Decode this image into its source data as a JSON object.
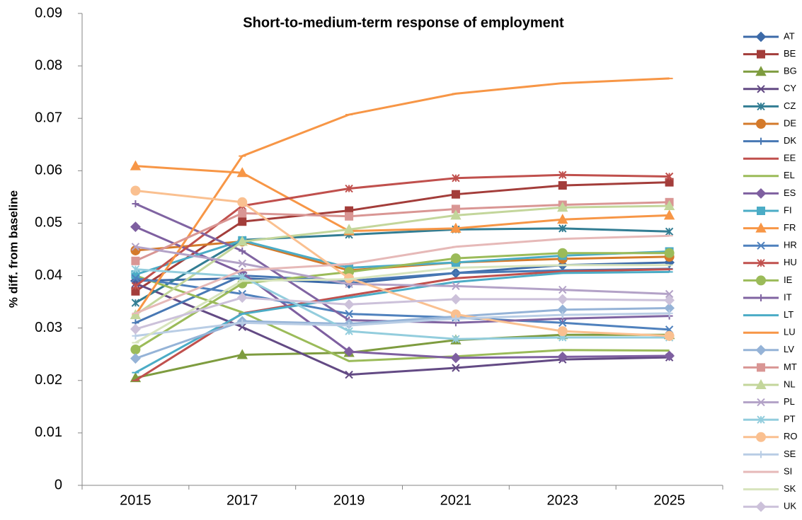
{
  "chart_data": {
    "type": "line",
    "title": "Short-to-medium-term response of employment",
    "y_label": "% diff. from baseline",
    "categories": [
      "2015",
      "2017",
      "2019",
      "2021",
      "2023",
      "2025"
    ],
    "ylim": [
      0,
      0.09
    ],
    "yticks": [
      0,
      0.01,
      0.02,
      0.03,
      0.04,
      0.05,
      0.06,
      0.07,
      0.08,
      0.09
    ],
    "grid": false,
    "legend": "right",
    "series": [
      {
        "name": "AT",
        "color": "#3C6AA8",
        "marker": "diamond",
        "values": [
          0.039,
          0.0395,
          0.0385,
          0.0405,
          0.042,
          0.0425
        ]
      },
      {
        "name": "BE",
        "color": "#A33D3A",
        "marker": "square",
        "values": [
          0.037,
          0.0503,
          0.0524,
          0.0555,
          0.0572,
          0.0578
        ]
      },
      {
        "name": "BG",
        "color": "#7E9C3F",
        "marker": "triangle",
        "values": [
          0.0205,
          0.0249,
          0.0253,
          0.0277,
          0.0287,
          0.0287
        ]
      },
      {
        "name": "CY",
        "color": "#634A84",
        "marker": "x",
        "values": [
          0.0385,
          0.0302,
          0.0211,
          0.0224,
          0.024,
          0.0244
        ]
      },
      {
        "name": "CZ",
        "color": "#327D93",
        "marker": "star",
        "values": [
          0.0348,
          0.0468,
          0.0478,
          0.0488,
          0.049,
          0.0484
        ]
      },
      {
        "name": "DE",
        "color": "#D47A2B",
        "marker": "circle",
        "values": [
          0.0448,
          0.0465,
          0.041,
          0.0425,
          0.0432,
          0.0436
        ]
      },
      {
        "name": "DK",
        "color": "#4878B4",
        "marker": "plus",
        "values": [
          0.031,
          0.04,
          0.039,
          0.0405,
          0.041,
          0.0413
        ]
      },
      {
        "name": "EE",
        "color": "#C0504D",
        "marker": "dash",
        "values": [
          0.02,
          0.0328,
          0.0362,
          0.0395,
          0.0408,
          0.0412
        ]
      },
      {
        "name": "EL",
        "color": "#9BBB59",
        "marker": "none",
        "values": [
          0.04,
          0.033,
          0.0237,
          0.0246,
          0.0258,
          0.0257
        ]
      },
      {
        "name": "ES",
        "color": "#7E5FA0",
        "marker": "diamond",
        "values": [
          0.0493,
          0.0405,
          0.0255,
          0.0243,
          0.0245,
          0.0247
        ]
      },
      {
        "name": "FI",
        "color": "#4BACC6",
        "marker": "square",
        "values": [
          0.0402,
          0.0467,
          0.0415,
          0.0425,
          0.0438,
          0.0446
        ]
      },
      {
        "name": "FR",
        "color": "#F79646",
        "marker": "triangle",
        "values": [
          0.0609,
          0.0596,
          0.0485,
          0.049,
          0.0507,
          0.0515
        ]
      },
      {
        "name": "HR",
        "color": "#4F81BD",
        "marker": "x",
        "values": [
          0.0395,
          0.0365,
          0.0327,
          0.032,
          0.031,
          0.0297
        ]
      },
      {
        "name": "HU",
        "color": "#C0504D",
        "marker": "star",
        "values": [
          0.038,
          0.0533,
          0.0566,
          0.0586,
          0.0592,
          0.0589
        ]
      },
      {
        "name": "IE",
        "color": "#9BBB59",
        "marker": "circle",
        "values": [
          0.0259,
          0.0385,
          0.0407,
          0.0433,
          0.0443,
          0.0443
        ]
      },
      {
        "name": "IT",
        "color": "#8064A2",
        "marker": "plus",
        "values": [
          0.0537,
          0.0447,
          0.0315,
          0.031,
          0.0318,
          0.0323
        ]
      },
      {
        "name": "LT",
        "color": "#4BACC6",
        "marker": "dash",
        "values": [
          0.0215,
          0.0327,
          0.0358,
          0.0388,
          0.0405,
          0.0407
        ]
      },
      {
        "name": "LU",
        "color": "#F79646",
        "marker": "dash",
        "values": [
          0.0325,
          0.0628,
          0.0707,
          0.0747,
          0.0767,
          0.0776
        ]
      },
      {
        "name": "LV",
        "color": "#95B3D7",
        "marker": "diamond",
        "values": [
          0.0242,
          0.0313,
          0.0308,
          0.0322,
          0.0335,
          0.0338
        ]
      },
      {
        "name": "MT",
        "color": "#D99694",
        "marker": "square",
        "values": [
          0.0428,
          0.0519,
          0.0513,
          0.0527,
          0.0535,
          0.054
        ]
      },
      {
        "name": "NL",
        "color": "#C3D69B",
        "marker": "triangle",
        "values": [
          0.0325,
          0.0465,
          0.0488,
          0.0515,
          0.053,
          0.0533
        ]
      },
      {
        "name": "PL",
        "color": "#B3A2C7",
        "marker": "x",
        "values": [
          0.0455,
          0.0423,
          0.0384,
          0.038,
          0.0373,
          0.0365
        ]
      },
      {
        "name": "PT",
        "color": "#93CDDD",
        "marker": "star",
        "values": [
          0.0412,
          0.0398,
          0.0294,
          0.0279,
          0.0282,
          0.0282
        ]
      },
      {
        "name": "RO",
        "color": "#FAC090",
        "marker": "circle",
        "values": [
          0.0562,
          0.054,
          0.0395,
          0.0326,
          0.0294,
          0.0285
        ]
      },
      {
        "name": "SE",
        "color": "#B9CDE5",
        "marker": "plus",
        "values": [
          0.0285,
          0.031,
          0.0305,
          0.0318,
          0.0325,
          0.0328
        ]
      },
      {
        "name": "SI",
        "color": "#E6B9B8",
        "marker": "dash",
        "values": [
          0.0328,
          0.041,
          0.0422,
          0.0455,
          0.047,
          0.0476
        ]
      },
      {
        "name": "SK",
        "color": "#D7E4BD",
        "marker": "dash",
        "values": [
          0.0272,
          0.039,
          0.0393,
          0.0415,
          0.042,
          0.042
        ]
      },
      {
        "name": "UK",
        "color": "#CCC1DA",
        "marker": "diamond",
        "values": [
          0.0298,
          0.0358,
          0.0345,
          0.0355,
          0.0355,
          0.0353
        ]
      }
    ]
  }
}
